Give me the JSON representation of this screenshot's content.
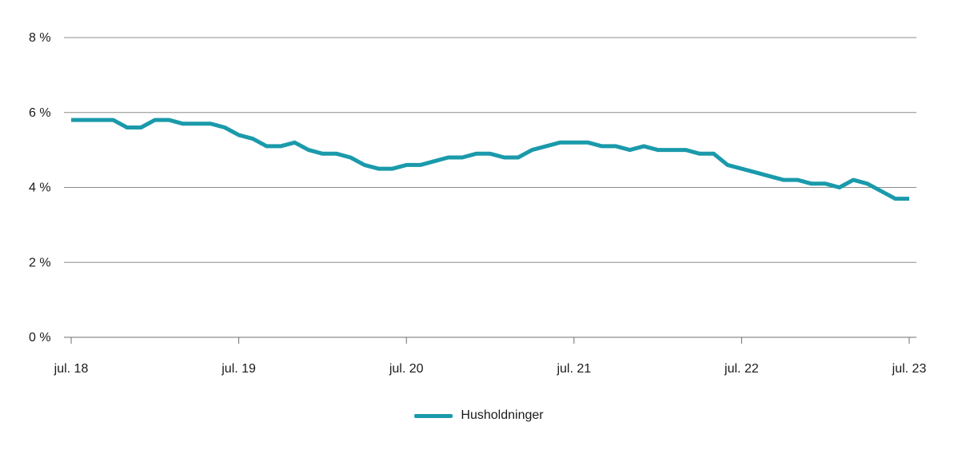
{
  "chart_data": {
    "type": "line",
    "title": "",
    "xlabel": "",
    "ylabel": "",
    "ylim": [
      0,
      8
    ],
    "yticks": [
      0,
      2,
      4,
      6,
      8
    ],
    "ytick_labels": [
      "0 %",
      "2 %",
      "4 %",
      "6 %",
      "8 %"
    ],
    "xtick_labels": [
      "jul. 18",
      "jul. 19",
      "jul. 20",
      "jul. 21",
      "jul. 22",
      "jul. 23"
    ],
    "xtick_index": [
      0,
      12,
      24,
      36,
      48,
      60
    ],
    "grid": true,
    "legend_position": "bottom-center",
    "series": [
      {
        "name": "Husholdninger",
        "color": "#1a9aab",
        "values": [
          5.8,
          5.8,
          5.8,
          5.8,
          5.6,
          5.6,
          5.8,
          5.8,
          5.7,
          5.7,
          5.7,
          5.6,
          5.4,
          5.3,
          5.1,
          5.1,
          5.2,
          5.0,
          4.9,
          4.9,
          4.8,
          4.6,
          4.5,
          4.5,
          4.6,
          4.6,
          4.7,
          4.8,
          4.8,
          4.9,
          4.9,
          4.8,
          4.8,
          5.0,
          5.1,
          5.2,
          5.2,
          5.2,
          5.1,
          5.1,
          5.0,
          5.1,
          5.0,
          5.0,
          5.0,
          4.9,
          4.9,
          4.6,
          4.5,
          4.4,
          4.3,
          4.2,
          4.2,
          4.1,
          4.1,
          4.0,
          4.2,
          4.1,
          3.9,
          3.7,
          3.7
        ]
      }
    ]
  }
}
